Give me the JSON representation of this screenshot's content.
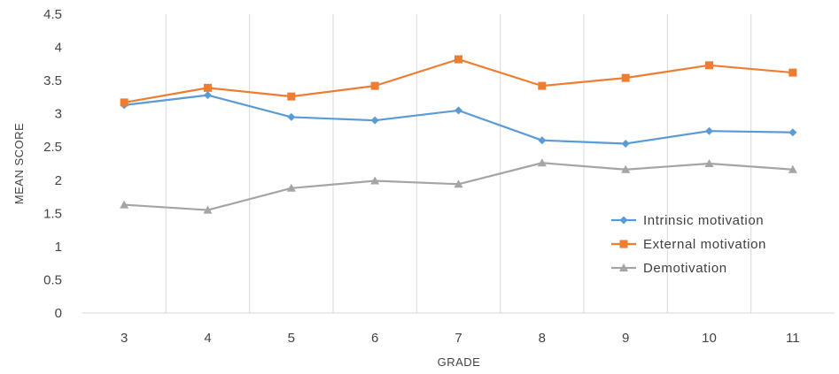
{
  "chart_data": {
    "type": "line",
    "xlabel": "GRADE",
    "ylabel": "MEAN SCORE",
    "categories": [
      "3",
      "4",
      "5",
      "6",
      "7",
      "8",
      "9",
      "10",
      "11"
    ],
    "ylim": [
      0,
      4.5
    ],
    "yticks": [
      "0",
      "0.5",
      "1",
      "1.5",
      "2",
      "2.5",
      "3",
      "3.5",
      "4",
      "4.5"
    ],
    "grid": "vertical",
    "legend_position": "right",
    "series": [
      {
        "name": "Intrinsic motivation",
        "color": "#5b9bd5",
        "marker": "diamond",
        "values": [
          3.13,
          3.28,
          2.95,
          2.9,
          3.05,
          2.6,
          2.55,
          2.74,
          2.72
        ]
      },
      {
        "name": "External motivation",
        "color": "#ed7d31",
        "marker": "square",
        "values": [
          3.17,
          3.39,
          3.26,
          3.42,
          3.82,
          3.42,
          3.54,
          3.73,
          3.62
        ]
      },
      {
        "name": "Demotivation",
        "color": "#a5a5a5",
        "marker": "triangle",
        "values": [
          1.63,
          1.55,
          1.88,
          1.99,
          1.94,
          2.26,
          2.16,
          2.25,
          2.16
        ]
      }
    ]
  }
}
